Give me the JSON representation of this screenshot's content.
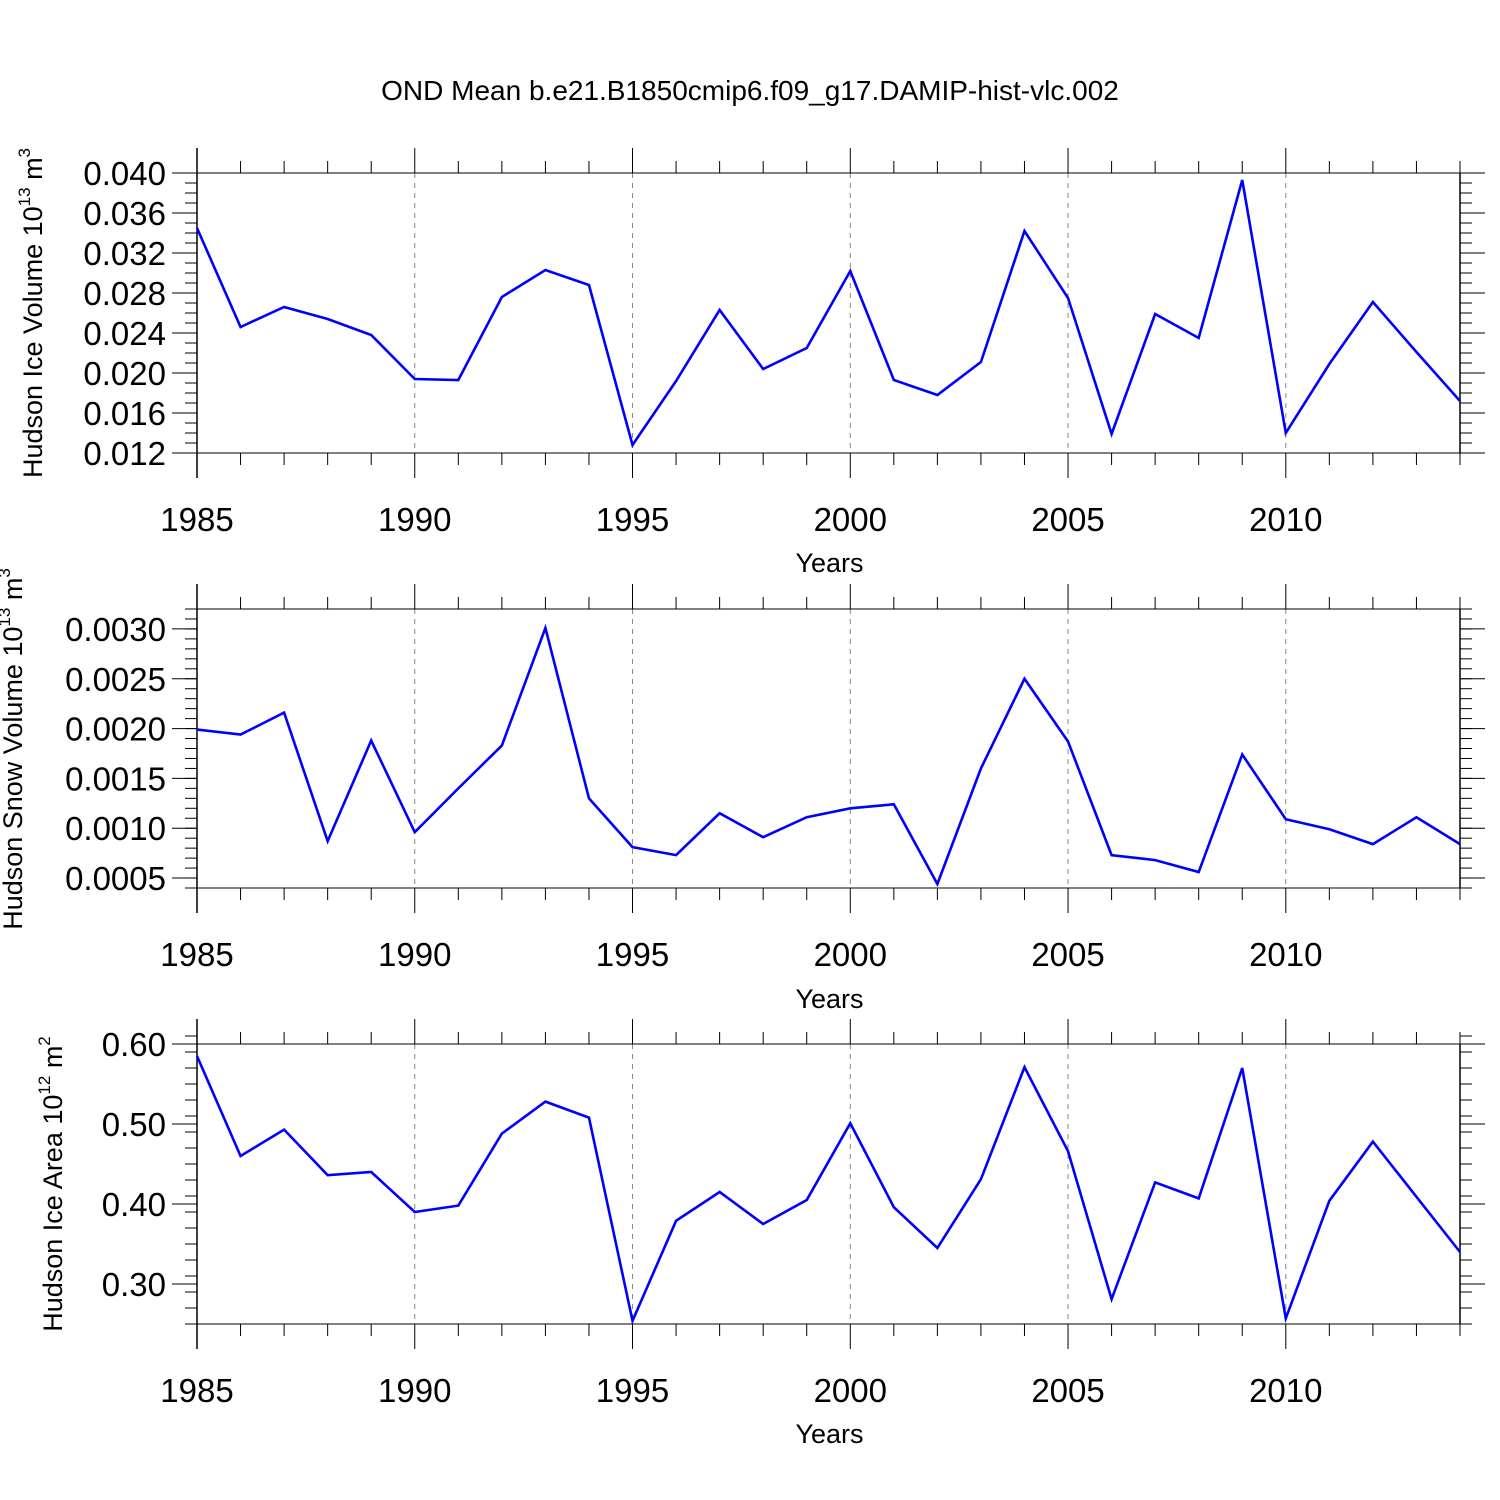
{
  "title": "OND Mean b.e21.B1850cmip6.f09_g17.DAMIP-hist-vlc.002",
  "colors": {
    "line": "#0000ff",
    "frame": "#000000",
    "grid": "#888888",
    "background": "#ffffff"
  },
  "chart_data": [
    {
      "type": "line",
      "ylabel": {
        "text": "Hudson Ice Volume 10",
        "exp": "13",
        "unit": " m",
        "unit_exp": "3"
      },
      "xlabel": "Years",
      "xlim": [
        1985,
        2014
      ],
      "ylim": [
        0.012,
        0.04
      ],
      "x_ticks": [
        1985,
        1990,
        1995,
        2000,
        2005,
        2010
      ],
      "x_tick_labels": [
        "1985",
        "1990",
        "1995",
        "2000",
        "2005",
        "2010"
      ],
      "y_ticks": [
        0.012,
        0.016,
        0.02,
        0.024,
        0.028,
        0.032,
        0.036,
        0.04
      ],
      "y_tick_labels": [
        "0.012",
        "0.016",
        "0.020",
        "0.024",
        "0.028",
        "0.032",
        "0.036",
        "0.040"
      ],
      "y_minor_step": 0.001,
      "grid": "vertical dashed at major x ticks",
      "x": [
        1985,
        1986,
        1987,
        1988,
        1989,
        1990,
        1991,
        1992,
        1993,
        1994,
        1995,
        1996,
        1997,
        1998,
        1999,
        2000,
        2001,
        2002,
        2003,
        2004,
        2005,
        2006,
        2007,
        2008,
        2009,
        2010,
        2011,
        2012,
        2013,
        2014
      ],
      "series": [
        {
          "name": "Hudson Ice Volume",
          "values": [
            0.0345,
            0.0246,
            0.0266,
            0.0254,
            0.0238,
            0.0194,
            0.0193,
            0.0276,
            0.0303,
            0.0288,
            0.0128,
            0.0192,
            0.0263,
            0.0204,
            0.0225,
            0.0302,
            0.0193,
            0.0178,
            0.0211,
            0.0342,
            0.0275,
            0.0139,
            0.0259,
            0.0235,
            0.0393,
            0.014,
            0.0209,
            0.0271,
            0.0221,
            0.0172
          ]
        }
      ]
    },
    {
      "type": "line",
      "ylabel": {
        "text": "Hudson Snow Volume 10",
        "exp": "13",
        "unit": " m",
        "unit_exp": "3"
      },
      "xlabel": "Years",
      "xlim": [
        1985,
        2014
      ],
      "ylim": [
        0.0004,
        0.0032
      ],
      "x_ticks": [
        1985,
        1990,
        1995,
        2000,
        2005,
        2010
      ],
      "x_tick_labels": [
        "1985",
        "1990",
        "1995",
        "2000",
        "2005",
        "2010"
      ],
      "y_ticks": [
        0.0005,
        0.001,
        0.0015,
        0.002,
        0.0025,
        0.003
      ],
      "y_tick_labels": [
        "0.0005",
        "0.0010",
        "0.0015",
        "0.0020",
        "0.0025",
        "0.0030"
      ],
      "y_minor_step": 0.0001,
      "grid": "vertical dashed at major x ticks",
      "x": [
        1985,
        1986,
        1987,
        1988,
        1989,
        1990,
        1991,
        1992,
        1993,
        1994,
        1995,
        1996,
        1997,
        1998,
        1999,
        2000,
        2001,
        2002,
        2003,
        2004,
        2005,
        2006,
        2007,
        2008,
        2009,
        2010,
        2011,
        2012,
        2013,
        2014
      ],
      "series": [
        {
          "name": "Hudson Snow Volume",
          "values": [
            0.00199,
            0.00194,
            0.00216,
            0.00087,
            0.00188,
            0.00096,
            0.0014,
            0.00183,
            0.00301,
            0.0013,
            0.00081,
            0.00073,
            0.00115,
            0.00091,
            0.00111,
            0.0012,
            0.00124,
            0.00044,
            0.0016,
            0.0025,
            0.00187,
            0.00073,
            0.00068,
            0.00056,
            0.00174,
            0.00109,
            0.00099,
            0.00084,
            0.00111,
            0.00084
          ]
        }
      ]
    },
    {
      "type": "line",
      "ylabel": {
        "text": "Hudson Ice Area 10",
        "exp": "12",
        "unit": " m",
        "unit_exp": "2"
      },
      "xlabel": "Years",
      "xlim": [
        1985,
        2014
      ],
      "ylim": [
        0.25,
        0.6
      ],
      "x_ticks": [
        1985,
        1990,
        1995,
        2000,
        2005,
        2010
      ],
      "x_tick_labels": [
        "1985",
        "1990",
        "1995",
        "2000",
        "2005",
        "2010"
      ],
      "y_ticks": [
        0.3,
        0.4,
        0.5,
        0.6
      ],
      "y_tick_labels": [
        "0.30",
        "0.40",
        "0.50",
        "0.60"
      ],
      "y_minor_step": 0.02,
      "grid": "vertical dashed at major x ticks",
      "x": [
        1985,
        1986,
        1987,
        1988,
        1989,
        1990,
        1991,
        1992,
        1993,
        1994,
        1995,
        1996,
        1997,
        1998,
        1999,
        2000,
        2001,
        2002,
        2003,
        2004,
        2005,
        2006,
        2007,
        2008,
        2009,
        2010,
        2011,
        2012,
        2013,
        2014
      ],
      "series": [
        {
          "name": "Hudson Ice Area",
          "values": [
            0.585,
            0.46,
            0.493,
            0.436,
            0.44,
            0.39,
            0.398,
            0.488,
            0.528,
            0.508,
            0.254,
            0.379,
            0.415,
            0.375,
            0.405,
            0.501,
            0.396,
            0.345,
            0.431,
            0.571,
            0.466,
            0.281,
            0.427,
            0.407,
            0.57,
            0.257,
            0.404,
            0.478,
            0.409,
            0.34
          ]
        }
      ]
    }
  ]
}
